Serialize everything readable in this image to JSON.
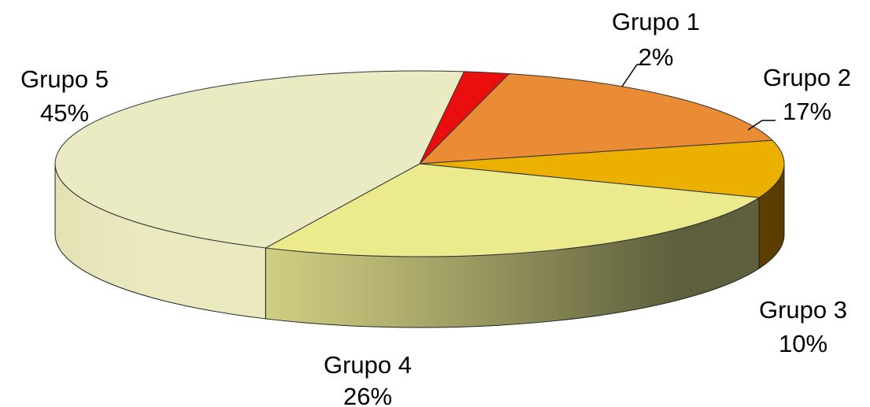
{
  "chart_data": {
    "type": "pie",
    "style": "3d",
    "categories": [
      "Grupo 1",
      "Grupo 2",
      "Grupo 3",
      "Grupo 4",
      "Grupo 5"
    ],
    "values": [
      2,
      17,
      10,
      26,
      45
    ],
    "value_labels": [
      "2%",
      "17%",
      "10%",
      "26%",
      "45%"
    ],
    "colors": [
      "#ea0f0f",
      "#ea8b35",
      "#ebb000",
      "#ebeb8e",
      "#ebebc3"
    ],
    "side_colors": [
      "#8a0808",
      "#704400",
      "#6b4a00",
      "#e8e488",
      "#e8e6bd"
    ],
    "legend": "none"
  }
}
